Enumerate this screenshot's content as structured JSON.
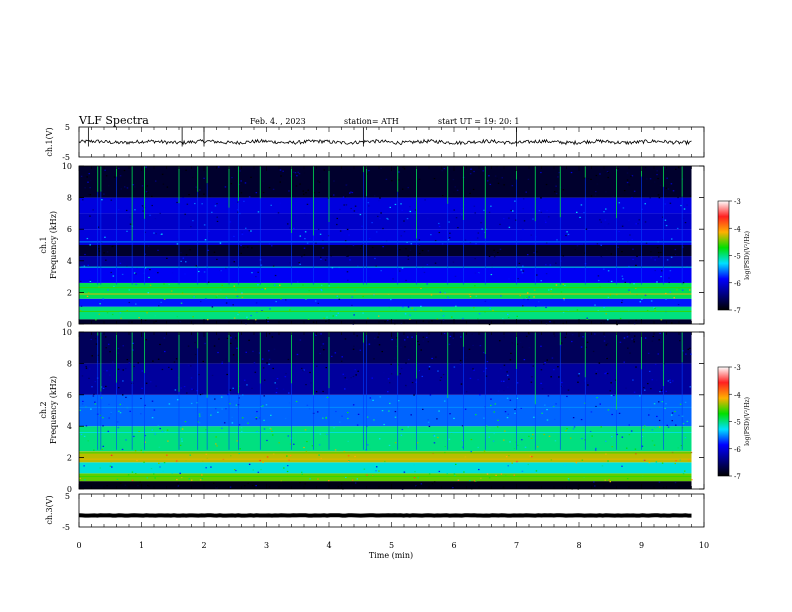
{
  "header": {
    "title": "VLF  Spectra",
    "date": "Feb. 4.  , 2023",
    "station": "station= ATH",
    "start_ut": "start  UT  =    19: 20: 1"
  },
  "panels": {
    "ch1": {
      "ylabel": "ch.1(V)",
      "ytick_top": "5",
      "ytick_bottom": "-5"
    },
    "spec1": {
      "ylabel_line1": "ch.1",
      "ylabel_line2": "Frequency  (kHz)",
      "yticks": [
        "0",
        "2",
        "4",
        "6",
        "8",
        "10"
      ]
    },
    "spec2": {
      "ylabel_line1": "ch.2",
      "ylabel_line2": "Frequency  (kHz)",
      "yticks": [
        "0",
        "2",
        "4",
        "6",
        "8",
        "10"
      ]
    },
    "ch3": {
      "ylabel": "ch.3(V)",
      "ytick_top": "5",
      "ytick_bottom": "-5"
    }
  },
  "xaxis": {
    "label": "Time  (min)",
    "ticks": [
      "0",
      "1",
      "2",
      "3",
      "4",
      "5",
      "6",
      "7",
      "8",
      "9",
      "10"
    ]
  },
  "colorbar": {
    "label": "log(PSD)(V²/Hz)",
    "ticks": [
      "-3",
      "-4",
      "-5",
      "-6",
      "-7"
    ],
    "colors": [
      "#ffffff",
      "#ff2020",
      "#ffb000",
      "#00e000",
      "#00e0ff",
      "#0000ff",
      "#000080",
      "#000000"
    ]
  },
  "chart_data": [
    {
      "type": "line",
      "name": "ch.1 waveform",
      "xlim": [
        0,
        10
      ],
      "ylim": [
        -5,
        5
      ],
      "x_range_data": [
        0,
        9.8
      ],
      "mean_level": 0,
      "amplitude_approx": 1,
      "spike_times": [
        0.15,
        1.65,
        2.0,
        4.55,
        7.0
      ]
    },
    {
      "type": "heatmap",
      "name": "ch.1 spectrogram",
      "xlim": [
        0,
        10
      ],
      "ylim": [
        0,
        10
      ],
      "x_range_data": [
        0,
        9.8
      ],
      "colorbar_range": [
        -7,
        -3
      ],
      "bands": [
        {
          "f_low": 0,
          "f_high": 0.3,
          "level": -6.8
        },
        {
          "f_low": 0.3,
          "f_high": 1.1,
          "level": -5.0
        },
        {
          "f_low": 1.1,
          "f_high": 1.6,
          "level": -5.8
        },
        {
          "f_low": 1.6,
          "f_high": 2.6,
          "level": -4.9
        },
        {
          "f_low": 2.6,
          "f_high": 3.6,
          "level": -5.9
        },
        {
          "f_low": 3.6,
          "f_high": 4.3,
          "level": -6.3
        },
        {
          "f_low": 4.3,
          "f_high": 5.0,
          "level": -6.8
        },
        {
          "f_low": 5.0,
          "f_high": 6.0,
          "level": -6.0
        },
        {
          "f_low": 6.0,
          "f_high": 7.0,
          "level": -6.1
        },
        {
          "f_low": 7.0,
          "f_high": 8.0,
          "level": -6.0
        },
        {
          "f_low": 8.0,
          "f_high": 10.0,
          "level": -6.8
        }
      ],
      "spheric_times": [
        0.3,
        0.35,
        0.6,
        0.85,
        1.05,
        1.6,
        1.9,
        2.05,
        2.4,
        2.55,
        2.9,
        3.4,
        3.75,
        4.0,
        4.55,
        4.6,
        5.1,
        5.4,
        5.9,
        6.15,
        6.5,
        7.0,
        7.3,
        7.7,
        8.1,
        8.6,
        9.0,
        9.35,
        9.65
      ]
    },
    {
      "type": "heatmap",
      "name": "ch.2 spectrogram",
      "xlim": [
        0,
        10
      ],
      "ylim": [
        0,
        10
      ],
      "x_range_data": [
        0,
        9.8
      ],
      "colorbar_range": [
        -7,
        -3
      ],
      "bands": [
        {
          "f_low": 0,
          "f_high": 0.5,
          "level": -6.9
        },
        {
          "f_low": 0.5,
          "f_high": 1.0,
          "level": -4.5
        },
        {
          "f_low": 1.0,
          "f_high": 1.7,
          "level": -5.2
        },
        {
          "f_low": 1.7,
          "f_high": 2.4,
          "level": -4.3
        },
        {
          "f_low": 2.4,
          "f_high": 4.0,
          "level": -5.0
        },
        {
          "f_low": 4.0,
          "f_high": 6.0,
          "level": -5.6
        },
        {
          "f_low": 6.0,
          "f_high": 8.0,
          "level": -6.3
        },
        {
          "f_low": 8.0,
          "f_high": 10.0,
          "level": -6.6
        }
      ],
      "spheric_times": [
        0.3,
        0.35,
        0.6,
        0.85,
        1.05,
        1.6,
        1.9,
        2.05,
        2.4,
        2.55,
        2.9,
        3.4,
        3.75,
        4.0,
        4.55,
        4.6,
        5.1,
        5.4,
        5.9,
        6.15,
        6.5,
        7.0,
        7.3,
        7.7,
        8.1,
        8.6,
        9.0,
        9.35,
        9.65
      ]
    },
    {
      "type": "line",
      "name": "ch.3 waveform",
      "xlim": [
        0,
        10
      ],
      "ylim": [
        -5,
        5
      ],
      "x_range_data": [
        0,
        9.8
      ],
      "mean_level": -1.5,
      "amplitude_approx": 0.4
    }
  ]
}
